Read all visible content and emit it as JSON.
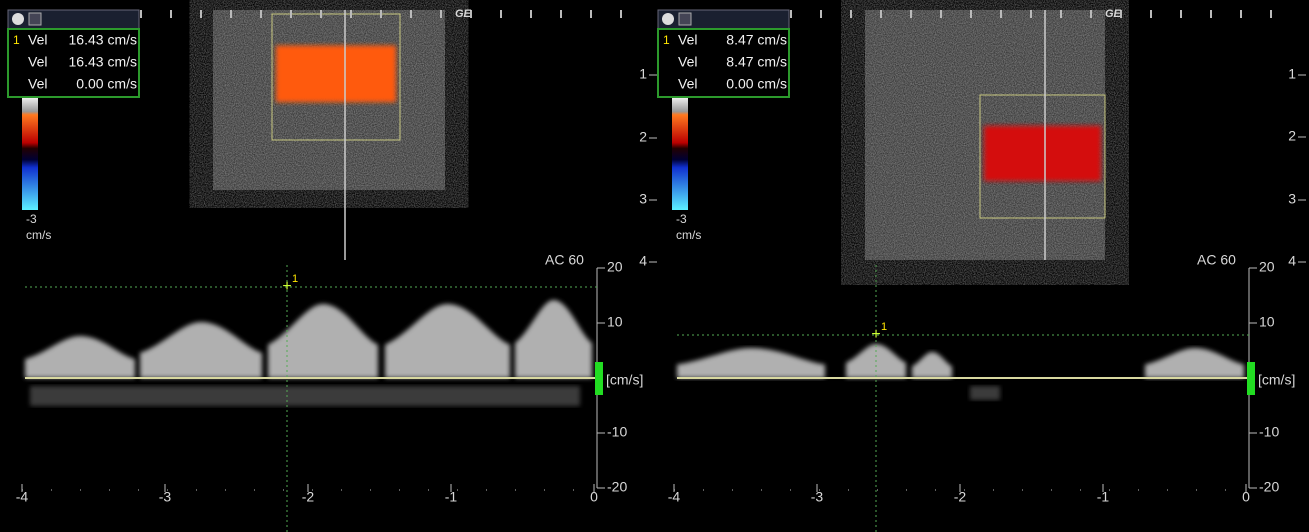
{
  "panels": [
    {
      "logo": "GE",
      "measurements": [
        {
          "marker": "1",
          "label": "Vel",
          "value": "16.43 cm/s"
        },
        {
          "label": "Vel",
          "value": "16.43 cm/s"
        },
        {
          "label": "Vel",
          "value": "0.00 cm/s"
        }
      ],
      "color_bar": {
        "min": "-3",
        "unit": "cm/s"
      },
      "depth_ticks": [
        "1",
        "2",
        "3",
        "4"
      ],
      "angle_correction": "AC 60",
      "velocity_ticks": [
        "20",
        "10",
        "-10",
        "-20"
      ],
      "velocity_unit": "[cm/s]",
      "time_ticks": [
        "-4",
        "-3",
        "-2",
        "-1",
        "0"
      ],
      "cursor_marker": "1"
    },
    {
      "logo": "GE",
      "measurements": [
        {
          "marker": "1",
          "label": "Vel",
          "value": "8.47 cm/s"
        },
        {
          "label": "Vel",
          "value": "8.47 cm/s"
        },
        {
          "label": "Vel",
          "value": "0.00 cm/s"
        }
      ],
      "color_bar": {
        "min": "-3",
        "unit": "cm/s"
      },
      "depth_ticks": [
        "1",
        "2",
        "3",
        "4"
      ],
      "angle_correction": "AC 60",
      "velocity_ticks": [
        "20",
        "10",
        "-10",
        "-20"
      ],
      "velocity_unit": "[cm/s]",
      "time_ticks": [
        "-4",
        "-3",
        "-2",
        "-1",
        "0"
      ],
      "cursor_marker": "1"
    }
  ]
}
